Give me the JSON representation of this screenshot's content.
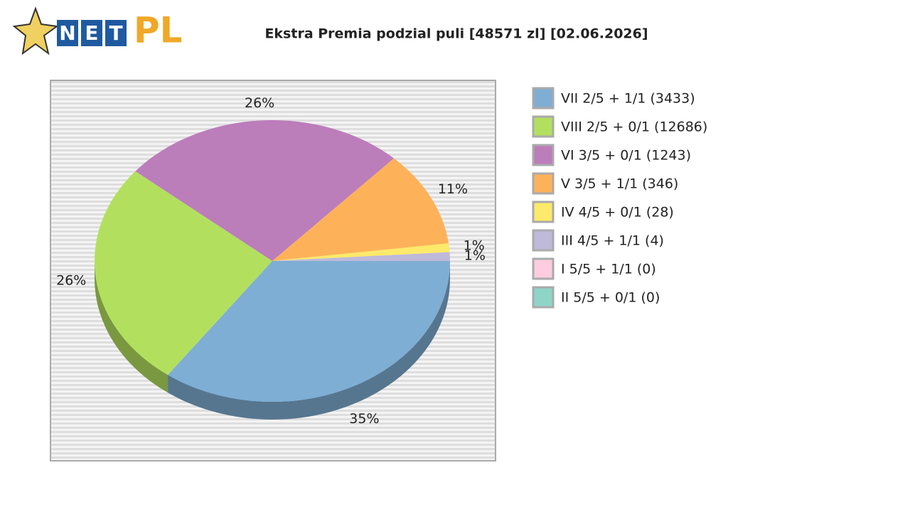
{
  "logo": {
    "net": [
      "N",
      "E",
      "T"
    ],
    "pl": "PL"
  },
  "chart_data": {
    "type": "pie",
    "title": "Ekstra Premia podzial puli [48571 zl] [02.06.2026]",
    "categories": [
      "VII 2/5 + 1/1 (3433)",
      "VIII 2/5 + 0/1 (12686)",
      "VI 3/5 + 0/1 (1243)",
      "V 3/5 + 1/1 (346)",
      "IV 4/5 + 0/1 (28)",
      "III 4/5 + 1/1 (4)",
      "I 5/5 + 1/1 (0)",
      "II 5/5 + 0/1 (0)"
    ],
    "values": [
      35,
      26,
      26,
      11,
      1,
      1,
      0,
      0
    ],
    "value_labels": [
      "35%",
      "26%",
      "26%",
      "11%",
      "1%",
      "1%",
      null,
      null
    ],
    "colors": [
      "#7eaed4",
      "#b2e05e",
      "#bc7dbb",
      "#fdb25a",
      "#fde96a",
      "#bfb9da",
      "#fdccdf",
      "#8ed5c8"
    ],
    "legend": "right"
  }
}
